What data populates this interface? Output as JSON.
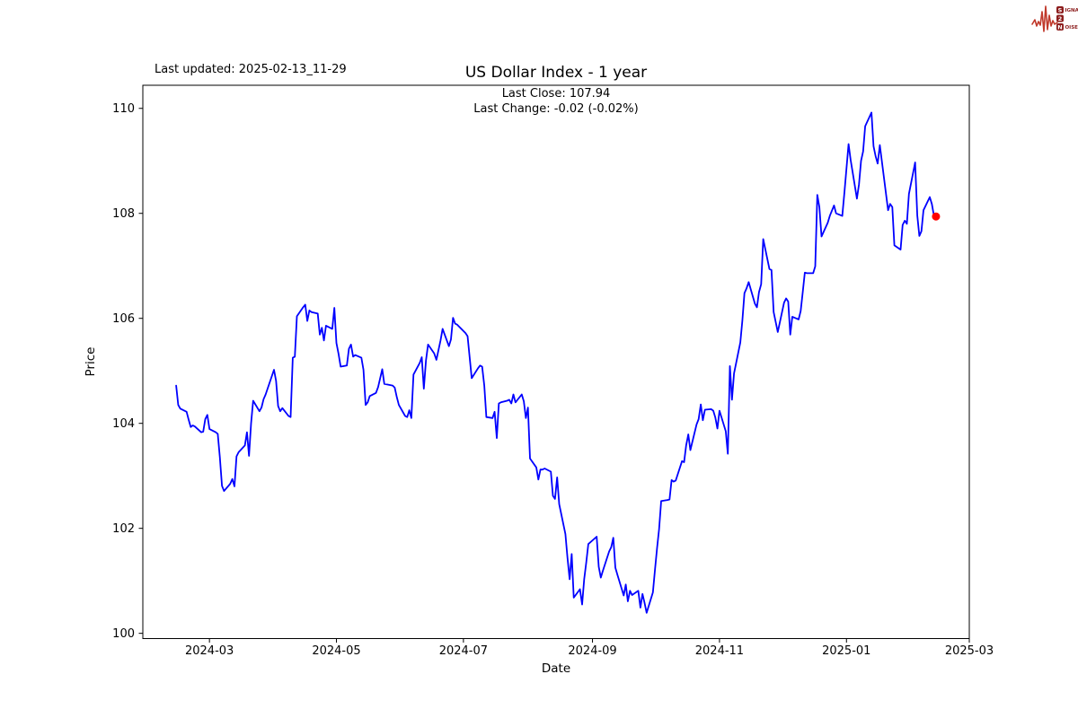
{
  "header": {
    "last_updated": "Last updated: 2025-02-13_11-29",
    "title": "US Dollar Index - 1 year",
    "last_close_label": "Last Close: 107.94",
    "last_change_label": "Last Change: -0.02 (-0.02%)"
  },
  "logo": {
    "rows": [
      {
        "boxed": "S",
        "rest": "IGNAL"
      },
      {
        "boxed": "2",
        "rest": ""
      },
      {
        "boxed": "N",
        "rest": "OISE"
      }
    ],
    "wave_color": "#c0392b",
    "box_color": "#8c1d1d",
    "text_color": "#8c1d1d"
  },
  "chart_data": {
    "type": "line",
    "title": "US Dollar Index - 1 year",
    "xlabel": "Date",
    "ylabel": "Price",
    "legend": "none",
    "grid": false,
    "line_color": "#0000ff",
    "marker_color": "#ff0000",
    "axis_color": "#000000",
    "last_close": 107.94,
    "last_change": -0.02,
    "last_change_pct": "-0.02%",
    "xlim": [
      "2024-01-29",
      "2025-03-01"
    ],
    "ylim": [
      99.9,
      110.44
    ],
    "y_ticks": [
      100,
      102,
      104,
      106,
      108,
      110
    ],
    "x_ticks": [
      {
        "date": "2024-03-01",
        "label": "2024-03"
      },
      {
        "date": "2024-05-01",
        "label": "2024-05"
      },
      {
        "date": "2024-07-01",
        "label": "2024-07"
      },
      {
        "date": "2024-09-01",
        "label": "2024-09"
      },
      {
        "date": "2024-11-01",
        "label": "2024-11"
      },
      {
        "date": "2025-01-01",
        "label": "2025-01"
      },
      {
        "date": "2025-03-01",
        "label": "2025-03"
      }
    ],
    "series": [
      {
        "name": "US Dollar Index",
        "points": [
          [
            "2024-02-14",
            104.72
          ],
          [
            "2024-02-15",
            104.35
          ],
          [
            "2024-02-16",
            104.28
          ],
          [
            "2024-02-19",
            104.22
          ],
          [
            "2024-02-20",
            104.07
          ],
          [
            "2024-02-21",
            103.93
          ],
          [
            "2024-02-22",
            103.96
          ],
          [
            "2024-02-23",
            103.94
          ],
          [
            "2024-02-26",
            103.83
          ],
          [
            "2024-02-27",
            103.84
          ],
          [
            "2024-02-28",
            104.08
          ],
          [
            "2024-02-29",
            104.16
          ],
          [
            "2024-03-01",
            103.89
          ],
          [
            "2024-03-04",
            103.83
          ],
          [
            "2024-03-05",
            103.8
          ],
          [
            "2024-03-06",
            103.36
          ],
          [
            "2024-03-07",
            102.81
          ],
          [
            "2024-03-08",
            102.71
          ],
          [
            "2024-03-11",
            102.85
          ],
          [
            "2024-03-12",
            102.94
          ],
          [
            "2024-03-13",
            102.8
          ],
          [
            "2024-03-14",
            103.37
          ],
          [
            "2024-03-15",
            103.45
          ],
          [
            "2024-03-18",
            103.58
          ],
          [
            "2024-03-19",
            103.83
          ],
          [
            "2024-03-20",
            103.38
          ],
          [
            "2024-03-21",
            104.0
          ],
          [
            "2024-03-22",
            104.43
          ],
          [
            "2024-03-25",
            104.23
          ],
          [
            "2024-03-26",
            104.3
          ],
          [
            "2024-03-27",
            104.46
          ],
          [
            "2024-03-28",
            104.55
          ],
          [
            "2024-04-01",
            105.02
          ],
          [
            "2024-04-02",
            104.81
          ],
          [
            "2024-04-03",
            104.33
          ],
          [
            "2024-04-04",
            104.23
          ],
          [
            "2024-04-05",
            104.29
          ],
          [
            "2024-04-08",
            104.14
          ],
          [
            "2024-04-09",
            104.12
          ],
          [
            "2024-04-10",
            105.25
          ],
          [
            "2024-04-11",
            105.27
          ],
          [
            "2024-04-12",
            106.04
          ],
          [
            "2024-04-15",
            106.21
          ],
          [
            "2024-04-16",
            106.26
          ],
          [
            "2024-04-17",
            105.95
          ],
          [
            "2024-04-18",
            106.15
          ],
          [
            "2024-04-19",
            106.12
          ],
          [
            "2024-04-22",
            106.09
          ],
          [
            "2024-04-23",
            105.69
          ],
          [
            "2024-04-24",
            105.82
          ],
          [
            "2024-04-25",
            105.58
          ],
          [
            "2024-04-26",
            105.86
          ],
          [
            "2024-04-29",
            105.8
          ],
          [
            "2024-04-30",
            106.2
          ],
          [
            "2024-05-01",
            105.53
          ],
          [
            "2024-05-02",
            105.33
          ],
          [
            "2024-05-03",
            105.08
          ],
          [
            "2024-05-06",
            105.1
          ],
          [
            "2024-05-07",
            105.42
          ],
          [
            "2024-05-08",
            105.5
          ],
          [
            "2024-05-09",
            105.27
          ],
          [
            "2024-05-10",
            105.3
          ],
          [
            "2024-05-13",
            105.25
          ],
          [
            "2024-05-14",
            105.02
          ],
          [
            "2024-05-15",
            104.35
          ],
          [
            "2024-05-16",
            104.4
          ],
          [
            "2024-05-17",
            104.52
          ],
          [
            "2024-05-20",
            104.58
          ],
          [
            "2024-05-21",
            104.69
          ],
          [
            "2024-05-23",
            105.03
          ],
          [
            "2024-05-24",
            104.75
          ],
          [
            "2024-05-28",
            104.72
          ],
          [
            "2024-05-29",
            104.68
          ],
          [
            "2024-05-30",
            104.5
          ],
          [
            "2024-05-31",
            104.35
          ],
          [
            "2024-06-03",
            104.14
          ],
          [
            "2024-06-04",
            104.12
          ],
          [
            "2024-06-05",
            104.25
          ],
          [
            "2024-06-06",
            104.1
          ],
          [
            "2024-06-07",
            104.93
          ],
          [
            "2024-06-10",
            105.15
          ],
          [
            "2024-06-11",
            105.26
          ],
          [
            "2024-06-12",
            104.66
          ],
          [
            "2024-06-13",
            105.2
          ],
          [
            "2024-06-14",
            105.5
          ],
          [
            "2024-06-17",
            105.33
          ],
          [
            "2024-06-18",
            105.21
          ],
          [
            "2024-06-20",
            105.58
          ],
          [
            "2024-06-21",
            105.8
          ],
          [
            "2024-06-24",
            105.47
          ],
          [
            "2024-06-25",
            105.6
          ],
          [
            "2024-06-26",
            106.01
          ],
          [
            "2024-06-27",
            105.9
          ],
          [
            "2024-06-28",
            105.88
          ],
          [
            "2024-07-02",
            105.72
          ],
          [
            "2024-07-03",
            105.66
          ],
          [
            "2024-07-05",
            104.86
          ],
          [
            "2024-07-08",
            105.05
          ],
          [
            "2024-07-09",
            105.1
          ],
          [
            "2024-07-10",
            105.08
          ],
          [
            "2024-07-11",
            104.72
          ],
          [
            "2024-07-12",
            104.12
          ],
          [
            "2024-07-15",
            104.1
          ],
          [
            "2024-07-16",
            104.22
          ],
          [
            "2024-07-17",
            103.72
          ],
          [
            "2024-07-18",
            104.38
          ],
          [
            "2024-07-19",
            104.4
          ],
          [
            "2024-07-22",
            104.43
          ],
          [
            "2024-07-23",
            104.45
          ],
          [
            "2024-07-24",
            104.38
          ],
          [
            "2024-07-25",
            104.55
          ],
          [
            "2024-07-26",
            104.4
          ],
          [
            "2024-07-29",
            104.55
          ],
          [
            "2024-07-30",
            104.42
          ],
          [
            "2024-07-31",
            104.1
          ],
          [
            "2024-08-01",
            104.3
          ],
          [
            "2024-08-02",
            103.33
          ],
          [
            "2024-08-05",
            103.16
          ],
          [
            "2024-08-06",
            102.93
          ],
          [
            "2024-08-07",
            103.12
          ],
          [
            "2024-08-08",
            103.12
          ],
          [
            "2024-08-09",
            103.14
          ],
          [
            "2024-08-12",
            103.08
          ],
          [
            "2024-08-13",
            102.62
          ],
          [
            "2024-08-14",
            102.56
          ],
          [
            "2024-08-15",
            102.97
          ],
          [
            "2024-08-16",
            102.46
          ],
          [
            "2024-08-19",
            101.89
          ],
          [
            "2024-08-20",
            101.44
          ],
          [
            "2024-08-21",
            101.03
          ],
          [
            "2024-08-22",
            101.51
          ],
          [
            "2024-08-23",
            100.68
          ],
          [
            "2024-08-26",
            100.84
          ],
          [
            "2024-08-27",
            100.55
          ],
          [
            "2024-08-28",
            101.03
          ],
          [
            "2024-08-29",
            101.35
          ],
          [
            "2024-08-30",
            101.7
          ],
          [
            "2024-09-03",
            101.84
          ],
          [
            "2024-09-04",
            101.27
          ],
          [
            "2024-09-05",
            101.06
          ],
          [
            "2024-09-06",
            101.19
          ],
          [
            "2024-09-09",
            101.56
          ],
          [
            "2024-09-10",
            101.64
          ],
          [
            "2024-09-11",
            101.82
          ],
          [
            "2024-09-12",
            101.25
          ],
          [
            "2024-09-13",
            101.11
          ],
          [
            "2024-09-16",
            100.72
          ],
          [
            "2024-09-17",
            100.93
          ],
          [
            "2024-09-18",
            100.61
          ],
          [
            "2024-09-19",
            100.81
          ],
          [
            "2024-09-20",
            100.73
          ],
          [
            "2024-09-23",
            100.81
          ],
          [
            "2024-09-24",
            100.49
          ],
          [
            "2024-09-25",
            100.75
          ],
          [
            "2024-09-26",
            100.58
          ],
          [
            "2024-09-27",
            100.39
          ],
          [
            "2024-09-30",
            100.78
          ],
          [
            "2024-10-01",
            101.21
          ],
          [
            "2024-10-02",
            101.62
          ],
          [
            "2024-10-03",
            101.99
          ],
          [
            "2024-10-04",
            102.52
          ],
          [
            "2024-10-07",
            102.54
          ],
          [
            "2024-10-08",
            102.55
          ],
          [
            "2024-10-09",
            102.92
          ],
          [
            "2024-10-10",
            102.89
          ],
          [
            "2024-10-11",
            102.91
          ],
          [
            "2024-10-14",
            103.28
          ],
          [
            "2024-10-15",
            103.26
          ],
          [
            "2024-10-16",
            103.58
          ],
          [
            "2024-10-17",
            103.79
          ],
          [
            "2024-10-18",
            103.49
          ],
          [
            "2024-10-21",
            103.98
          ],
          [
            "2024-10-22",
            104.08
          ],
          [
            "2024-10-23",
            104.36
          ],
          [
            "2024-10-24",
            104.06
          ],
          [
            "2024-10-25",
            104.26
          ],
          [
            "2024-10-28",
            104.27
          ],
          [
            "2024-10-29",
            104.24
          ],
          [
            "2024-10-30",
            104.11
          ],
          [
            "2024-10-31",
            103.9
          ],
          [
            "2024-11-01",
            104.24
          ],
          [
            "2024-11-04",
            103.85
          ],
          [
            "2024-11-05",
            103.42
          ],
          [
            "2024-11-06",
            105.09
          ],
          [
            "2024-11-07",
            104.45
          ],
          [
            "2024-11-08",
            104.95
          ],
          [
            "2024-11-11",
            105.54
          ],
          [
            "2024-11-12",
            105.96
          ],
          [
            "2024-11-13",
            106.48
          ],
          [
            "2024-11-14",
            106.57
          ],
          [
            "2024-11-15",
            106.69
          ],
          [
            "2024-11-18",
            106.28
          ],
          [
            "2024-11-19",
            106.21
          ],
          [
            "2024-11-20",
            106.5
          ],
          [
            "2024-11-21",
            106.65
          ],
          [
            "2024-11-22",
            107.51
          ],
          [
            "2024-11-25",
            106.94
          ],
          [
            "2024-11-26",
            106.92
          ],
          [
            "2024-11-27",
            106.12
          ],
          [
            "2024-11-29",
            105.74
          ],
          [
            "2024-12-02",
            106.3
          ],
          [
            "2024-12-03",
            106.38
          ],
          [
            "2024-12-04",
            106.32
          ],
          [
            "2024-12-05",
            105.69
          ],
          [
            "2024-12-06",
            106.03
          ],
          [
            "2024-12-09",
            105.98
          ],
          [
            "2024-12-10",
            106.14
          ],
          [
            "2024-12-11",
            106.5
          ],
          [
            "2024-12-12",
            106.87
          ],
          [
            "2024-12-13",
            106.86
          ],
          [
            "2024-12-16",
            106.86
          ],
          [
            "2024-12-17",
            106.99
          ],
          [
            "2024-12-18",
            108.35
          ],
          [
            "2024-12-19",
            108.12
          ],
          [
            "2024-12-20",
            107.56
          ],
          [
            "2024-12-23",
            107.82
          ],
          [
            "2024-12-24",
            107.95
          ],
          [
            "2024-12-26",
            108.15
          ],
          [
            "2024-12-27",
            108.0
          ],
          [
            "2024-12-30",
            107.95
          ],
          [
            "2024-12-31",
            108.4
          ],
          [
            "2025-01-02",
            109.32
          ],
          [
            "2025-01-03",
            109.02
          ],
          [
            "2025-01-06",
            108.28
          ],
          [
            "2025-01-07",
            108.55
          ],
          [
            "2025-01-08",
            109.0
          ],
          [
            "2025-01-09",
            109.18
          ],
          [
            "2025-01-10",
            109.66
          ],
          [
            "2025-01-13",
            109.92
          ],
          [
            "2025-01-14",
            109.28
          ],
          [
            "2025-01-15",
            109.09
          ],
          [
            "2025-01-16",
            108.95
          ],
          [
            "2025-01-17",
            109.3
          ],
          [
            "2025-01-21",
            108.06
          ],
          [
            "2025-01-22",
            108.18
          ],
          [
            "2025-01-23",
            108.12
          ],
          [
            "2025-01-24",
            107.39
          ],
          [
            "2025-01-27",
            107.31
          ],
          [
            "2025-01-28",
            107.78
          ],
          [
            "2025-01-29",
            107.86
          ],
          [
            "2025-01-30",
            107.8
          ],
          [
            "2025-01-31",
            108.37
          ],
          [
            "2025-02-03",
            108.97
          ],
          [
            "2025-02-04",
            107.96
          ],
          [
            "2025-02-05",
            107.57
          ],
          [
            "2025-02-06",
            107.66
          ],
          [
            "2025-02-07",
            108.06
          ],
          [
            "2025-02-10",
            108.31
          ],
          [
            "2025-02-11",
            108.18
          ],
          [
            "2025-02-12",
            107.96
          ],
          [
            "2025-02-13",
            107.94
          ]
        ]
      }
    ]
  }
}
